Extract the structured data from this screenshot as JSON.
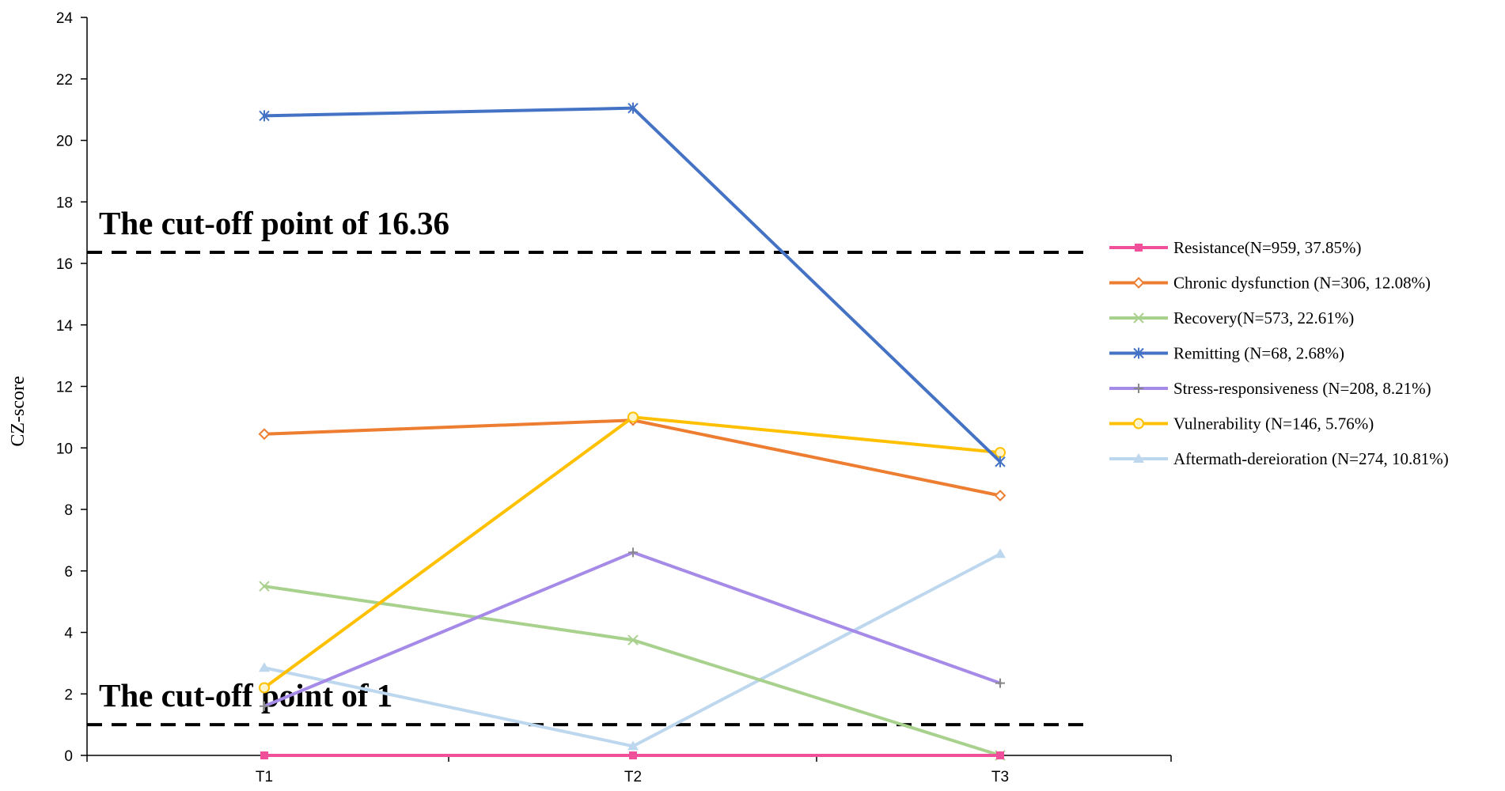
{
  "chart_data": {
    "type": "line",
    "categories": [
      "T1",
      "T2",
      "T3"
    ],
    "ylabel": "CZ-score",
    "ylim": [
      0,
      24
    ],
    "yticks": [
      0,
      2,
      4,
      6,
      8,
      10,
      12,
      14,
      16,
      18,
      20,
      22,
      24
    ],
    "grid": false,
    "legend_position": "right",
    "series": [
      {
        "name": "Resistance(N=959, 37.85%)",
        "values": [
          0,
          0,
          0
        ],
        "color": "#f0509a",
        "marker": "square"
      },
      {
        "name": "Chronic dysfunction (N=306, 12.08%)",
        "values": [
          10.45,
          10.9,
          8.45
        ],
        "color": "#ed7d31",
        "marker": "diamond"
      },
      {
        "name": "Recovery(N=573, 22.61%)",
        "values": [
          5.5,
          3.75,
          0
        ],
        "color": "#a9d18e",
        "marker": "x"
      },
      {
        "name": "Remitting (N=68, 2.68%)",
        "values": [
          20.8,
          21.05,
          9.55
        ],
        "color": "#4472c4",
        "marker": "star"
      },
      {
        "name": "Stress-responsiveness (N=208, 8.21%)",
        "values": [
          1.6,
          6.6,
          2.35
        ],
        "color": "#a68ae8",
        "marker": "plus"
      },
      {
        "name": "Vulnerability  (N=146, 5.76%)",
        "values": [
          2.2,
          11.0,
          9.85
        ],
        "color": "#ffc000",
        "marker": "circle"
      },
      {
        "name": "Aftermath-dereioration (N=274, 10.81%)",
        "values": [
          2.85,
          0.3,
          6.55
        ],
        "color": "#bdd7ee",
        "marker": "triangle"
      }
    ],
    "reference_lines": [
      {
        "label": "The cut-off point of 16.36",
        "value": 16.36
      },
      {
        "label": "The cut-off point of 1",
        "value": 1
      }
    ]
  }
}
